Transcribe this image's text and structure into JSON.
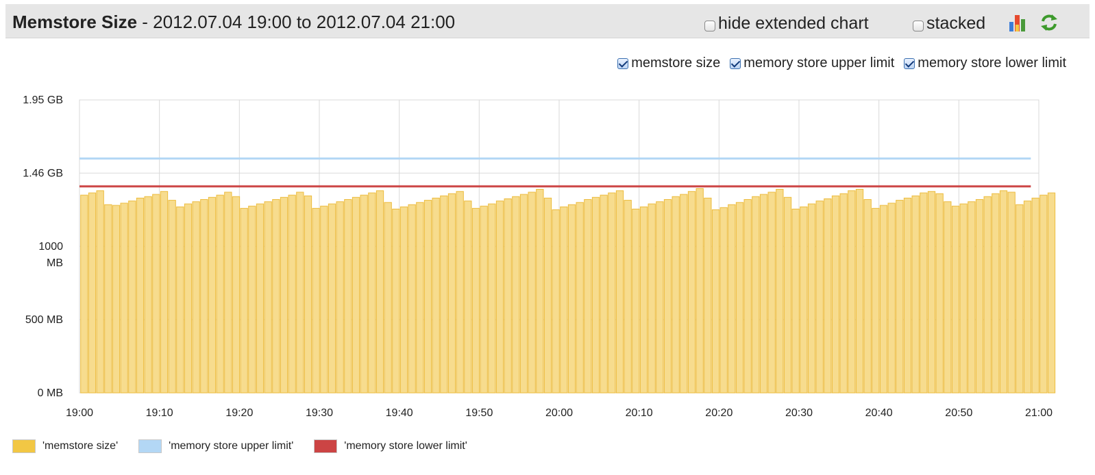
{
  "header": {
    "title_name": "Memstore Size",
    "title_range": " - 2012.07.04 19:00 to 2012.07.04 21:00",
    "hide_extended_label": "hide extended chart",
    "stacked_label": "stacked",
    "chart_icon": "bar-chart-icon",
    "refresh_icon": "refresh-icon"
  },
  "toggles": [
    {
      "label": "memstore size",
      "checked": true
    },
    {
      "label": "memory store upper limit",
      "checked": true
    },
    {
      "label": "memory store lower limit",
      "checked": true
    }
  ],
  "legend": [
    {
      "label": "'memstore size'",
      "color": "#f2c744"
    },
    {
      "label": "'memory store upper limit'",
      "color": "#b3d7f5"
    },
    {
      "label": "'memory store lower limit'",
      "color": "#cc4444"
    }
  ],
  "chart_data": {
    "type": "bar",
    "title": "Memstore Size",
    "xlabel": "",
    "ylabel": "",
    "y_unit": "MB",
    "ylim": [
      0,
      2000
    ],
    "y_ticks": [
      {
        "value": 0,
        "label": "0 MB"
      },
      {
        "value": 500,
        "label": "500 MB"
      },
      {
        "value": 1000,
        "label": "1000 MB"
      },
      {
        "value": 1500,
        "label": "1.46 GB"
      },
      {
        "value": 2000,
        "label": "1.95 GB"
      }
    ],
    "x_ticks": [
      "19:00",
      "19:10",
      "19:20",
      "19:30",
      "19:40",
      "19:50",
      "20:00",
      "20:10",
      "20:20",
      "20:30",
      "20:40",
      "20:50",
      "21:00"
    ],
    "x_range_minutes": [
      0,
      120
    ],
    "grid": true,
    "legend_position": "bottom-left",
    "series": [
      {
        "name": "memstore size",
        "type": "bar",
        "color": "#f2c744",
        "interval_minutes": 1,
        "values": [
          1350,
          1365,
          1380,
          1285,
          1280,
          1295,
          1310,
          1330,
          1340,
          1355,
          1375,
          1315,
          1270,
          1290,
          1305,
          1320,
          1335,
          1350,
          1370,
          1340,
          1260,
          1275,
          1290,
          1305,
          1320,
          1335,
          1350,
          1370,
          1345,
          1260,
          1275,
          1290,
          1305,
          1320,
          1335,
          1350,
          1365,
          1380,
          1300,
          1255,
          1270,
          1285,
          1300,
          1315,
          1330,
          1345,
          1360,
          1375,
          1310,
          1260,
          1275,
          1290,
          1310,
          1325,
          1340,
          1355,
          1370,
          1390,
          1330,
          1250,
          1270,
          1285,
          1300,
          1320,
          1335,
          1350,
          1365,
          1380,
          1315,
          1255,
          1270,
          1290,
          1305,
          1320,
          1340,
          1355,
          1375,
          1395,
          1330,
          1250,
          1265,
          1285,
          1300,
          1320,
          1340,
          1355,
          1370,
          1390,
          1335,
          1255,
          1270,
          1290,
          1310,
          1325,
          1345,
          1360,
          1380,
          1390,
          1320,
          1260,
          1280,
          1295,
          1315,
          1330,
          1345,
          1365,
          1375,
          1360,
          1305,
          1275,
          1290,
          1305,
          1320,
          1340,
          1360,
          1380,
          1370,
          1285,
          1310,
          1330,
          1350,
          1365
        ]
      },
      {
        "name": "memory store upper limit",
        "type": "line",
        "color": "#b3d7f5",
        "x": [
          0,
          119
        ],
        "values": [
          1600,
          1600
        ]
      },
      {
        "name": "memory store lower limit",
        "type": "line",
        "color": "#cc4444",
        "x": [
          0,
          119
        ],
        "values": [
          1410,
          1410
        ]
      }
    ]
  }
}
